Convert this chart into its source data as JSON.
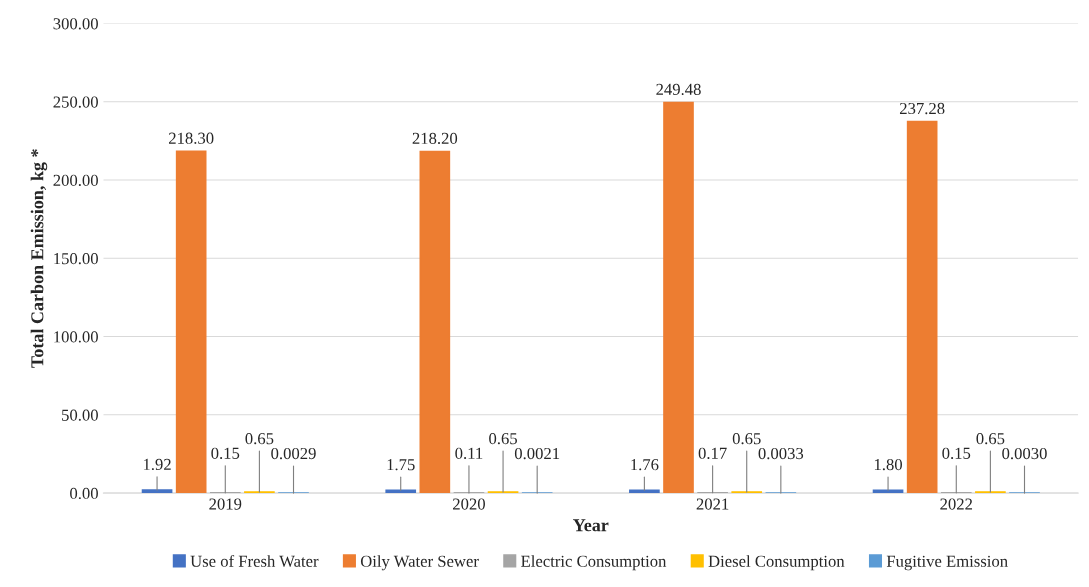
{
  "chart_data": {
    "type": "bar",
    "xlabel": "Year",
    "ylabel": "Total Carbon Emission, kg *",
    "categories": [
      "2019",
      "2020",
      "2021",
      "2022"
    ],
    "series": [
      {
        "name": "Use of Fresh Water",
        "color": "#4472c4",
        "values": [
          1.92,
          1.75,
          1.76,
          1.8
        ],
        "value_labels": [
          "1.92",
          "1.75",
          "1.76",
          "1.80"
        ]
      },
      {
        "name": "Oily Water Sewer",
        "color": "#ed7d31",
        "values": [
          218.3,
          218.2,
          249.48,
          237.28
        ],
        "value_labels": [
          "218.30",
          "218.20",
          "249.48",
          "237.28"
        ]
      },
      {
        "name": "Electric Consumption",
        "color": "#a5a5a5",
        "values": [
          0.15,
          0.11,
          0.17,
          0.15
        ],
        "value_labels": [
          "0.15",
          "0.11",
          "0.17",
          "0.15"
        ]
      },
      {
        "name": "Diesel Consumption",
        "color": "#ffc000",
        "values": [
          0.65,
          0.65,
          0.65,
          0.65
        ],
        "value_labels": [
          "0.65",
          "0.65",
          "0.65",
          "0.65"
        ]
      },
      {
        "name": "Fugitive Emission",
        "color": "#5b9bd5",
        "values": [
          0.0029,
          0.0021,
          0.0033,
          0.003
        ],
        "value_labels": [
          "0.0029",
          "0.0021",
          "0.0033",
          "0.0030"
        ]
      }
    ],
    "ylim": [
      0,
      300
    ],
    "yticks": [
      {
        "value": 0,
        "label": "0.00"
      },
      {
        "value": 50,
        "label": "50.00"
      },
      {
        "value": 100,
        "label": "100.00"
      },
      {
        "value": 150,
        "label": "150.00"
      },
      {
        "value": 200,
        "label": "200.00"
      },
      {
        "value": 250,
        "label": "250.00"
      },
      {
        "value": 300,
        "label": "300.00"
      }
    ],
    "grid": "y",
    "legend": "bottom"
  }
}
